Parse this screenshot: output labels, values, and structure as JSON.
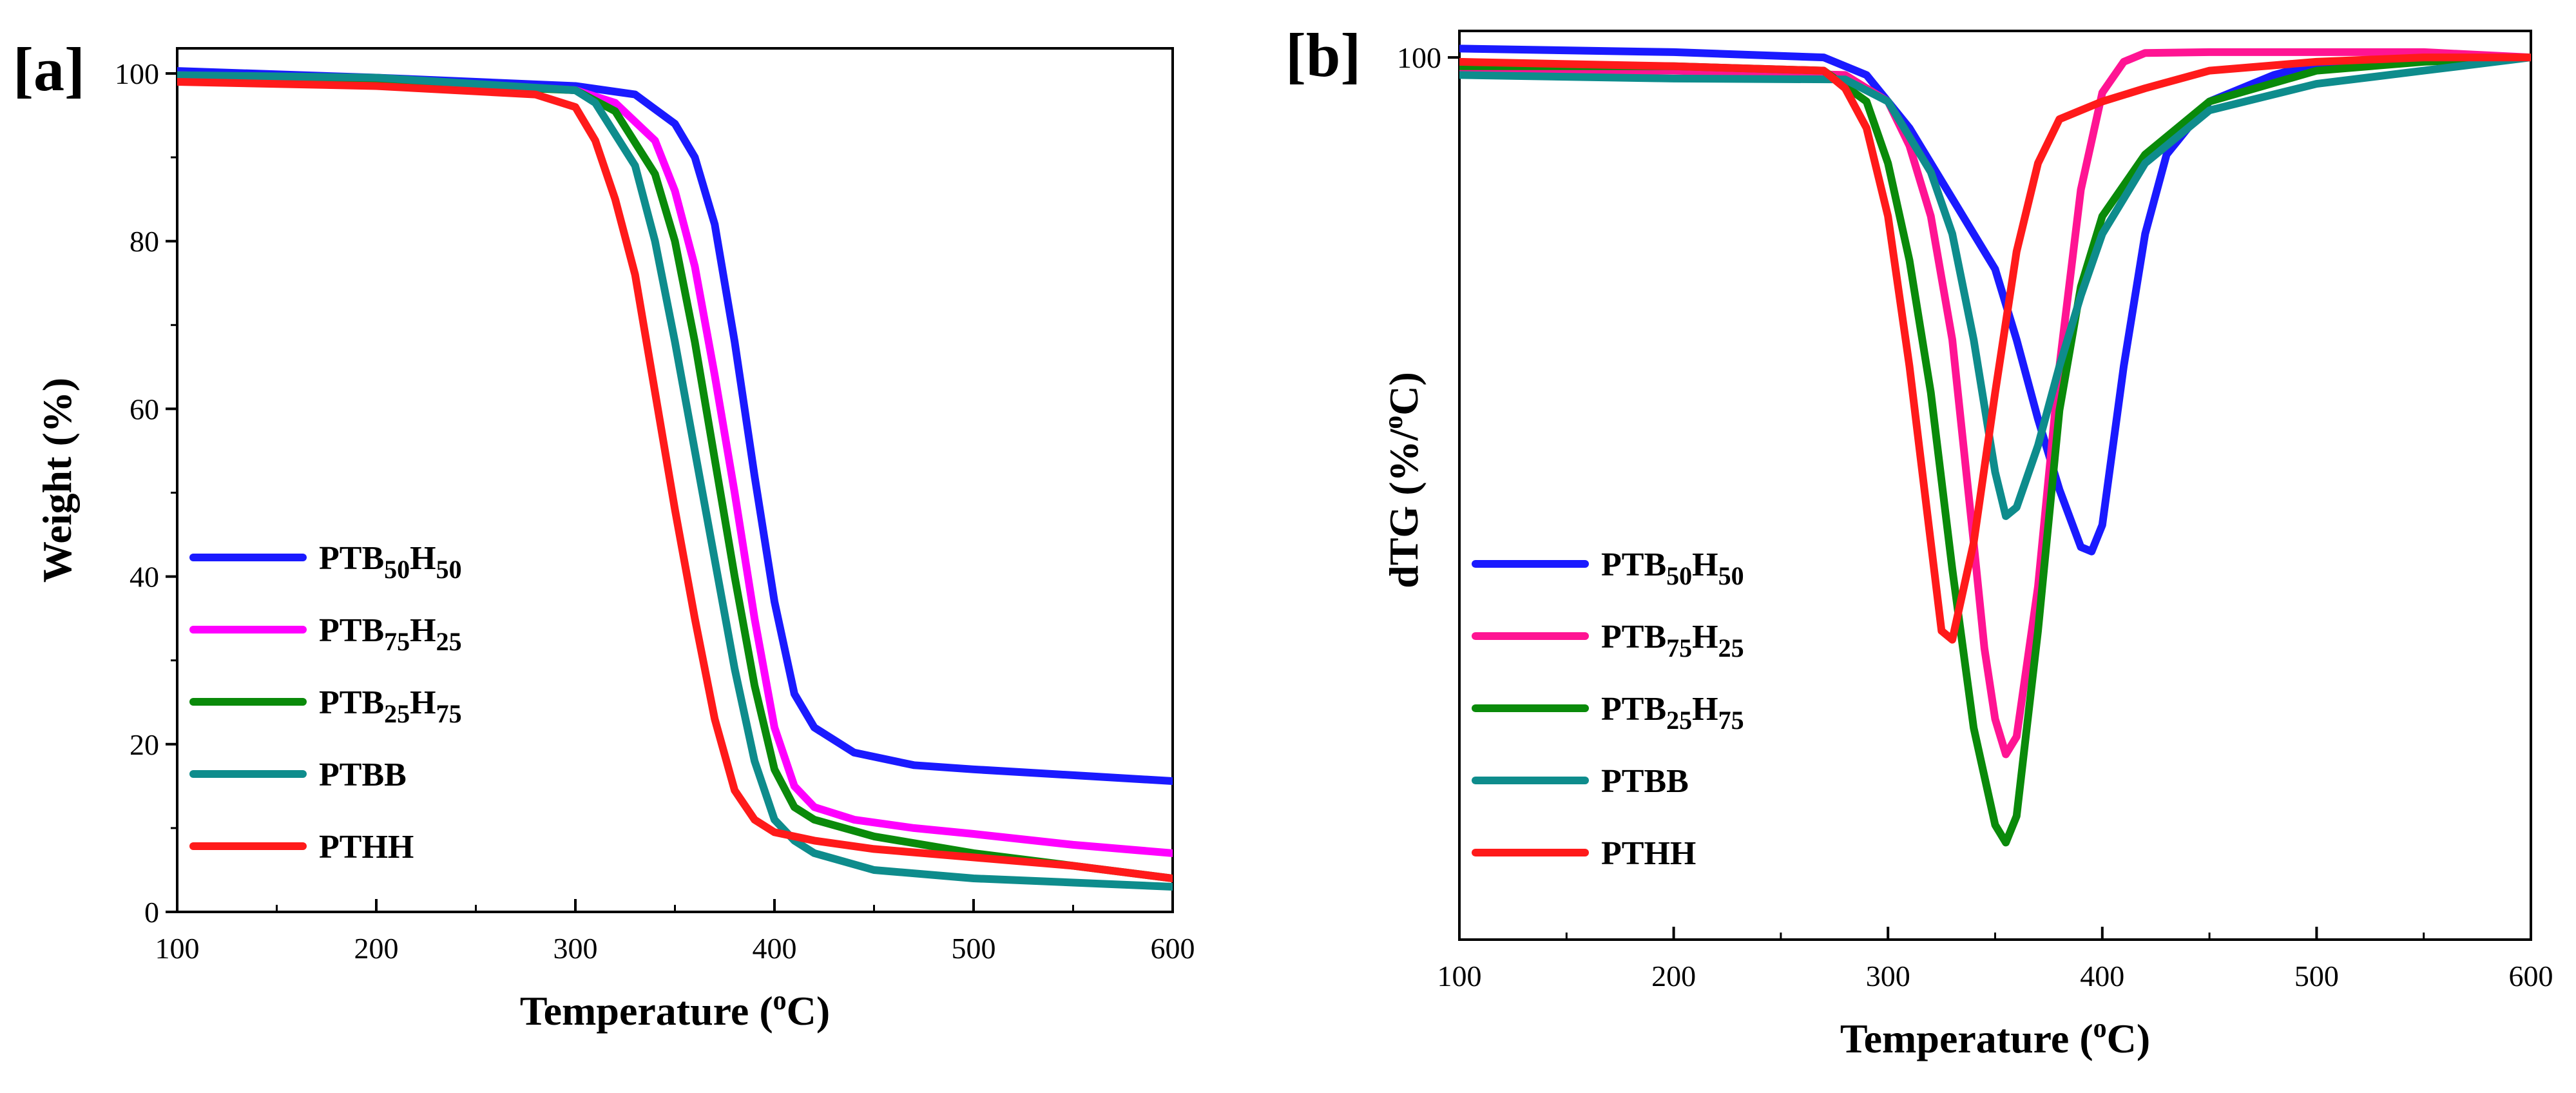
{
  "chart_data": [
    {
      "panel_label": "[a]",
      "type": "line",
      "title": "",
      "xlabel": "Temperature",
      "xlabel_unit": "(oC)",
      "ylabel": "Weight (%)",
      "xlim": [
        100,
        600
      ],
      "ylim": [
        0,
        103
      ],
      "xticks": [
        100,
        200,
        300,
        400,
        500,
        600
      ],
      "yticks": [
        0,
        20,
        40,
        60,
        80,
        100
      ],
      "grid": false,
      "legend_position": "left, lower-middle",
      "series": [
        {
          "name": "PTB50H50",
          "label_main": "PTB",
          "sub1": "50",
          "mid": "H",
          "sub2": "50",
          "color": "#1a1aff",
          "x": [
            100,
            200,
            300,
            330,
            350,
            360,
            370,
            380,
            390,
            400,
            410,
            420,
            440,
            470,
            500,
            550,
            600
          ],
          "y": [
            100.3,
            99.5,
            98.5,
            97.5,
            94,
            90,
            82,
            68,
            52,
            37,
            26,
            22,
            19,
            17.5,
            17,
            16.3,
            15.6
          ]
        },
        {
          "name": "PTB75H25",
          "label_main": "PTB",
          "sub1": "75",
          "mid": "H",
          "sub2": "25",
          "color": "#ff00ff",
          "x": [
            100,
            200,
            300,
            320,
            340,
            350,
            360,
            370,
            380,
            390,
            400,
            410,
            420,
            440,
            470,
            500,
            550,
            600
          ],
          "y": [
            99.8,
            99.3,
            98,
            96.5,
            92,
            86,
            77,
            64,
            50,
            35,
            22,
            15,
            12.5,
            11,
            10,
            9.3,
            8,
            7
          ]
        },
        {
          "name": "PTB25H75",
          "label_main": "PTB",
          "sub1": "25",
          "mid": "H",
          "sub2": "75",
          "color": "#0a8a0a",
          "x": [
            100,
            200,
            300,
            320,
            340,
            350,
            360,
            370,
            380,
            390,
            400,
            410,
            420,
            450,
            500,
            550,
            600
          ],
          "y": [
            99.5,
            99,
            98,
            95.5,
            88,
            80,
            68,
            54,
            40,
            27,
            17,
            12.5,
            11,
            9,
            7,
            5.5,
            4
          ]
        },
        {
          "name": "PTBB",
          "label_main": "PTBB",
          "sub1": "",
          "mid": "",
          "sub2": "",
          "color": "#0e8c8c",
          "x": [
            100,
            200,
            300,
            310,
            330,
            340,
            350,
            360,
            370,
            380,
            390,
            400,
            410,
            420,
            450,
            500,
            550,
            600
          ],
          "y": [
            99.8,
            99.5,
            98,
            96.5,
            89,
            80,
            68,
            55,
            42,
            29,
            18,
            11,
            8.5,
            7,
            5,
            4,
            3.5,
            3
          ]
        },
        {
          "name": "PTHH",
          "label_main": "PTHH",
          "sub1": "",
          "mid": "",
          "sub2": "",
          "color": "#ff1a1a",
          "x": [
            100,
            200,
            280,
            300,
            310,
            320,
            330,
            340,
            350,
            360,
            370,
            380,
            390,
            400,
            420,
            450,
            500,
            550,
            600
          ],
          "y": [
            99,
            98.5,
            97.5,
            96,
            92,
            85,
            76,
            62,
            48,
            35,
            23,
            14.5,
            11,
            9.5,
            8.5,
            7.5,
            6.5,
            5.5,
            4
          ]
        }
      ]
    },
    {
      "panel_label": "[b]",
      "type": "line",
      "title": "",
      "xlabel": "Temperature",
      "xlabel_unit": "(oC)",
      "ylabel": "dTG (%/oC)",
      "xlim": [
        100,
        600
      ],
      "ylim": [
        0,
        103
      ],
      "xticks": [
        100,
        200,
        300,
        400,
        500,
        600
      ],
      "yticks": [
        100
      ],
      "grid": false,
      "legend_position": "left, lower-middle",
      "series": [
        {
          "name": "PTB50H50",
          "label_main": "PTB",
          "sub1": "50",
          "mid": "H",
          "sub2": "50",
          "color": "#1a1aff",
          "x": [
            100,
            200,
            270,
            290,
            310,
            330,
            340,
            350,
            360,
            370,
            380,
            390,
            395,
            400,
            410,
            420,
            430,
            450,
            480,
            500,
            550,
            600
          ],
          "y": [
            101,
            100.6,
            100,
            98,
            92,
            84,
            80,
            76,
            68,
            59,
            51,
            44.5,
            44,
            47,
            65,
            80,
            89,
            95,
            98,
            99.3,
            100,
            100
          ]
        },
        {
          "name": "PTB75H25",
          "label_main": "PTB",
          "sub1": "75",
          "mid": "H",
          "sub2": "25",
          "color": "#ff1493",
          "x": [
            100,
            200,
            280,
            300,
            310,
            320,
            330,
            340,
            345,
            350,
            355,
            360,
            370,
            380,
            390,
            400,
            410,
            420,
            450,
            500,
            550,
            600
          ],
          "y": [
            98.5,
            98.5,
            98,
            95,
            90,
            82,
            68,
            45,
            33,
            25,
            21,
            23,
            40,
            65,
            85,
            96,
            99.5,
            100.5,
            100.6,
            100.6,
            100.6,
            100
          ]
        },
        {
          "name": "PTB25H75",
          "label_main": "PTB",
          "sub1": "25",
          "mid": "H",
          "sub2": "75",
          "color": "#0a8a0a",
          "x": [
            100,
            200,
            270,
            290,
            300,
            310,
            320,
            330,
            340,
            350,
            355,
            360,
            370,
            380,
            390,
            400,
            420,
            450,
            500,
            550,
            600
          ],
          "y": [
            99,
            99,
            98.5,
            95,
            88,
            77,
            62,
            42,
            24,
            13,
            11,
            14,
            35,
            60,
            74,
            82,
            89,
            95,
            98.5,
            99.5,
            100
          ]
        },
        {
          "name": "PTBB",
          "label_main": "PTBB",
          "sub1": "",
          "mid": "",
          "sub2": "",
          "color": "#0e8c8c",
          "x": [
            100,
            200,
            280,
            300,
            320,
            330,
            340,
            350,
            355,
            360,
            370,
            380,
            390,
            400,
            420,
            450,
            500,
            550,
            600
          ],
          "y": [
            98,
            97.6,
            97.5,
            95,
            87,
            80,
            68,
            53,
            48,
            49,
            56,
            65,
            73,
            80,
            88,
            94,
            97,
            98.5,
            100
          ]
        },
        {
          "name": "PTHH",
          "label_main": "PTHH",
          "sub1": "",
          "mid": "",
          "sub2": "",
          "color": "#ff1a1a",
          "x": [
            100,
            200,
            270,
            280,
            290,
            300,
            310,
            320,
            325,
            330,
            340,
            350,
            360,
            370,
            380,
            390,
            400,
            420,
            450,
            500,
            550,
            600
          ],
          "y": [
            99.5,
            99,
            98.5,
            96.5,
            92,
            82,
            65,
            45,
            35,
            34,
            45,
            62,
            78,
            88,
            93,
            94,
            95,
            96.5,
            98.5,
            99.5,
            100,
            100
          ]
        }
      ]
    }
  ]
}
